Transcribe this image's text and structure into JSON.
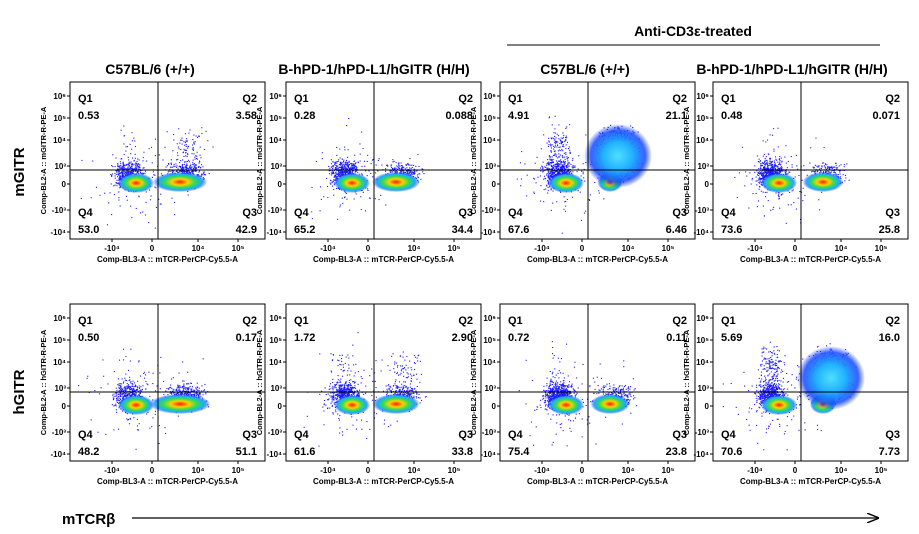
{
  "figure": {
    "treatment_label": "Anti-CD3ε-treated",
    "row_labels": [
      "mGITR",
      "hGITR"
    ],
    "x_axis_arrow_label": "mTCRβ",
    "column_titles": [
      "C57BL/6 (+/+)",
      "B-hPD-1/hPD-L1/hGITR (H/H)",
      "C57BL/6 (+/+)",
      "B-hPD-1/hPD-L1/hGITR (H/H)"
    ]
  },
  "chart_data": [
    {
      "type": "scatter",
      "panel": "mGITR / C57BL/6 (+/+)",
      "ylabel": "Comp-BL2-A :: mGITR-R-PE-A",
      "xlabel": "Comp-BL3-A :: mTCR-PerCP-Cy5.5-A",
      "quadrants": {
        "Q1": "0.53",
        "Q2": "3.58",
        "Q3": "42.9",
        "Q4": "53.0"
      }
    },
    {
      "type": "scatter",
      "panel": "mGITR / B-hPD-1/hPD-L1/hGITR (H/H)",
      "ylabel": "Comp-BL2-A :: mGITR-R-PE-A",
      "xlabel": "Comp-BL3-A :: mTCR-PerCP-Cy5.5-A",
      "quadrants": {
        "Q1": "0.28",
        "Q2": "0.088",
        "Q3": "34.4",
        "Q4": "65.2"
      }
    },
    {
      "type": "scatter",
      "panel": "mGITR / Anti-CD3ε-treated C57BL/6 (+/+)",
      "ylabel": "Comp-BL2-A :: mGITR-R-PE-A",
      "xlabel": "Comp-BL3-A :: mTCR-PerCP-Cy5.5-A",
      "quadrants": {
        "Q1": "4.91",
        "Q2": "21.1",
        "Q3": "6.46",
        "Q4": "67.6"
      }
    },
    {
      "type": "scatter",
      "panel": "mGITR / Anti-CD3ε-treated B-hPD-1/hPD-L1/hGITR (H/H)",
      "ylabel": "Comp-BL2-A :: mGITR-R-PE-A",
      "xlabel": "Comp-BL3-A :: mTCR-PerCP-Cy5.5-A",
      "quadrants": {
        "Q1": "0.48",
        "Q2": "0.071",
        "Q3": "25.8",
        "Q4": "73.6"
      }
    },
    {
      "type": "scatter",
      "panel": "hGITR / C57BL/6 (+/+)",
      "ylabel": "Comp-BL2-A :: hGITR-R-PE-A",
      "xlabel": "Comp-BL3-A :: mTCR-PerCP-Cy5.5-A",
      "quadrants": {
        "Q1": "0.50",
        "Q2": "0.17",
        "Q3": "51.1",
        "Q4": "48.2"
      }
    },
    {
      "type": "scatter",
      "panel": "hGITR / B-hPD-1/hPD-L1/hGITR (H/H)",
      "ylabel": "Comp-BL2-A :: hGITR-R-PE-A",
      "xlabel": "Comp-BL3-A :: mTCR-PerCP-Cy5.5-A",
      "quadrants": {
        "Q1": "1.72",
        "Q2": "2.90",
        "Q3": "33.8",
        "Q4": "61.6"
      }
    },
    {
      "type": "scatter",
      "panel": "hGITR / Anti-CD3ε-treated C57BL/6 (+/+)",
      "ylabel": "Comp-BL2-A :: hGITR-R-PE-A",
      "xlabel": "Comp-BL3-A :: mTCR-PerCP-Cy5.5-A",
      "quadrants": {
        "Q1": "0.72",
        "Q2": "0.11",
        "Q3": "23.8",
        "Q4": "75.4"
      }
    },
    {
      "type": "scatter",
      "panel": "hGITR / Anti-CD3ε-treated B-hPD-1/hPD-L1/hGITR (H/H)",
      "ylabel": "Comp-BL2-A :: hGITR-R-PE-A",
      "xlabel": "Comp-BL3-A :: mTCR-PerCP-Cy5.5-A",
      "quadrants": {
        "Q1": "5.69",
        "Q2": "16.0",
        "Q3": "7.73",
        "Q4": "70.6"
      }
    }
  ],
  "axes": {
    "x_ticks": [
      "-10⁴",
      "0",
      "10⁴",
      "10⁵"
    ],
    "y_ticks": [
      "10⁶",
      "10⁵",
      "10⁴",
      "10³",
      "0",
      "-10³",
      "-10⁴"
    ]
  }
}
